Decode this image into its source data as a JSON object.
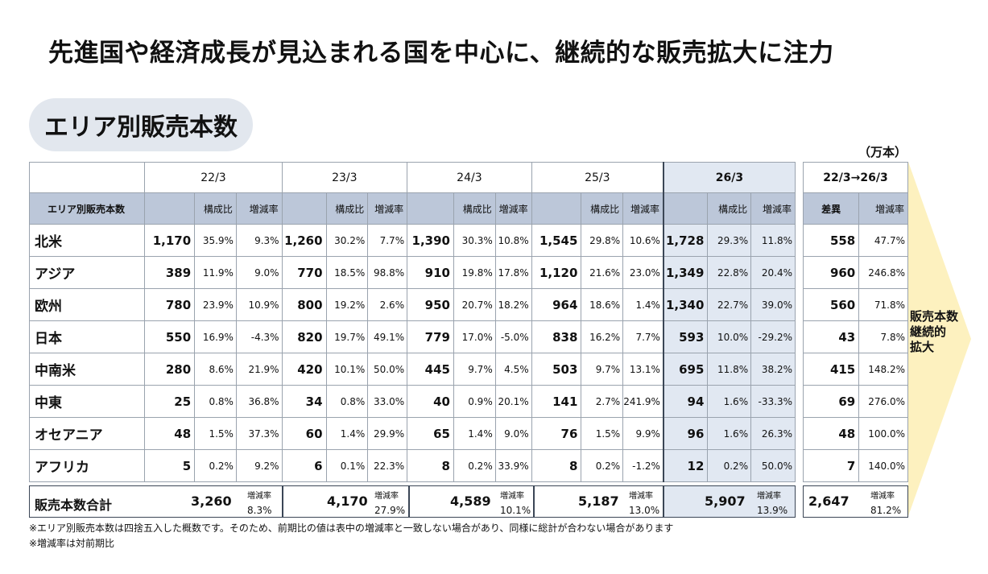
{
  "title": "先進国や経済成長が見込まれる国を中心に、継続的な販売拡大に注力",
  "section_label": "エリア別販売本数",
  "unit": "（万本）",
  "table": {
    "years": [
      "22/3",
      "23/3",
      "24/3",
      "25/3",
      "26/3"
    ],
    "diff_header": "22/3→26/3",
    "row_header": "エリア別販売本数",
    "share_label": "構成比",
    "growth_label": "増減率",
    "diff_label": "差異",
    "rows": [
      {
        "area": "北米",
        "c": [
          [
            "1,170",
            "35.9%",
            "9.3%"
          ],
          [
            "1,260",
            "30.2%",
            "7.7%"
          ],
          [
            "1,390",
            "30.3%",
            "10.8%"
          ],
          [
            "1,545",
            "29.8%",
            "10.6%"
          ],
          [
            "1,728",
            "29.3%",
            "11.8%"
          ]
        ],
        "diff": "558",
        "rate": "47.7%"
      },
      {
        "area": "アジア",
        "c": [
          [
            "389",
            "11.9%",
            "9.0%"
          ],
          [
            "770",
            "18.5%",
            "98.8%"
          ],
          [
            "910",
            "19.8%",
            "17.8%"
          ],
          [
            "1,120",
            "21.6%",
            "23.0%"
          ],
          [
            "1,349",
            "22.8%",
            "20.4%"
          ]
        ],
        "diff": "960",
        "rate": "246.8%"
      },
      {
        "area": "欧州",
        "c": [
          [
            "780",
            "23.9%",
            "10.9%"
          ],
          [
            "800",
            "19.2%",
            "2.6%"
          ],
          [
            "950",
            "20.7%",
            "18.2%"
          ],
          [
            "964",
            "18.6%",
            "1.4%"
          ],
          [
            "1,340",
            "22.7%",
            "39.0%"
          ]
        ],
        "diff": "560",
        "rate": "71.8%"
      },
      {
        "area": "日本",
        "c": [
          [
            "550",
            "16.9%",
            "-4.3%"
          ],
          [
            "820",
            "19.7%",
            "49.1%"
          ],
          [
            "779",
            "17.0%",
            "-5.0%"
          ],
          [
            "838",
            "16.2%",
            "7.7%"
          ],
          [
            "593",
            "10.0%",
            "-29.2%"
          ]
        ],
        "diff": "43",
        "rate": "7.8%"
      },
      {
        "area": "中南米",
        "c": [
          [
            "280",
            "8.6%",
            "21.9%"
          ],
          [
            "420",
            "10.1%",
            "50.0%"
          ],
          [
            "445",
            "9.7%",
            "4.5%"
          ],
          [
            "503",
            "9.7%",
            "13.1%"
          ],
          [
            "695",
            "11.8%",
            "38.2%"
          ]
        ],
        "diff": "415",
        "rate": "148.2%"
      },
      {
        "area": "中東",
        "c": [
          [
            "25",
            "0.8%",
            "36.8%"
          ],
          [
            "34",
            "0.8%",
            "33.0%"
          ],
          [
            "40",
            "0.9%",
            "20.1%"
          ],
          [
            "141",
            "2.7%",
            "241.9%"
          ],
          [
            "94",
            "1.6%",
            "-33.3%"
          ]
        ],
        "diff": "69",
        "rate": "276.0%"
      },
      {
        "area": "オセアニア",
        "c": [
          [
            "48",
            "1.5%",
            "37.3%"
          ],
          [
            "60",
            "1.4%",
            "29.9%"
          ],
          [
            "65",
            "1.4%",
            "9.0%"
          ],
          [
            "76",
            "1.5%",
            "9.9%"
          ],
          [
            "96",
            "1.6%",
            "26.3%"
          ]
        ],
        "diff": "48",
        "rate": "100.0%"
      },
      {
        "area": "アフリカ",
        "c": [
          [
            "5",
            "0.2%",
            "9.2%"
          ],
          [
            "6",
            "0.1%",
            "22.3%"
          ],
          [
            "8",
            "0.2%",
            "33.9%"
          ],
          [
            "8",
            "0.2%",
            "-1.2%"
          ],
          [
            "12",
            "0.2%",
            "50.0%"
          ]
        ],
        "diff": "7",
        "rate": "140.0%"
      }
    ]
  },
  "totals": {
    "label": "販売本数合計",
    "rate_label": "増減率",
    "values": [
      {
        "value": "3,260",
        "rate": "8.3%"
      },
      {
        "value": "4,170",
        "rate": "27.9%"
      },
      {
        "value": "4,589",
        "rate": "10.1%"
      },
      {
        "value": "5,187",
        "rate": "13.0%"
      },
      {
        "value": "5,907",
        "rate": "13.9%"
      }
    ],
    "diff": {
      "value": "2,647",
      "rate": "81.2%"
    }
  },
  "arrow_text": [
    "販売本数",
    "継続的",
    "拡大"
  ],
  "notes": [
    "※エリア別販売本数は四捨五入した概数です。そのため、前期比の値は表中の増減率と一致しない場合があり、同様に総計が合わない場合があります",
    "※増減率は対前期比"
  ],
  "colors": {
    "header_band": "#bcc7d9",
    "highlight": "#e1e8f2",
    "pill": "#e2e7ee",
    "arrow": "#fdf1bf"
  }
}
